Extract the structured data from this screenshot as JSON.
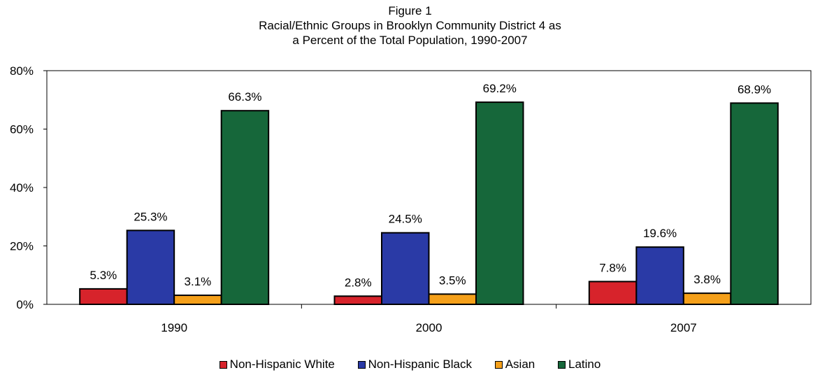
{
  "chart_data": {
    "type": "bar",
    "title_lines": [
      "Figure 1",
      "Racial/Ethnic Groups in Brooklyn Community District 4 as",
      "a Percent of  the Total Population, 1990-2007"
    ],
    "categories": [
      "1990",
      "2000",
      "2007"
    ],
    "series": [
      {
        "name": "Non-Hispanic White",
        "color": "#d7232b",
        "values": [
          5.3,
          2.8,
          7.8
        ],
        "labels": [
          "5.3%",
          "2.8%",
          "7.8%"
        ]
      },
      {
        "name": "Non-Hispanic Black",
        "color": "#2a3aa6",
        "values": [
          25.3,
          24.5,
          19.6
        ],
        "labels": [
          "25.3%",
          "24.5%",
          "19.6%"
        ]
      },
      {
        "name": "Asian",
        "color": "#f5a01a",
        "values": [
          3.1,
          3.5,
          3.8
        ],
        "labels": [
          "3.1%",
          "3.5%",
          "3.8%"
        ]
      },
      {
        "name": "Latino",
        "color": "#16673a",
        "values": [
          66.3,
          69.2,
          68.9
        ],
        "labels": [
          "66.3%",
          "69.2%",
          "68.9%"
        ]
      }
    ],
    "ylim": [
      0,
      80
    ],
    "yticks": [
      0,
      20,
      40,
      60,
      80
    ],
    "ytick_labels": [
      "0%",
      "20%",
      "40%",
      "60%",
      "80%"
    ],
    "grid": false,
    "legend_position": "bottom"
  }
}
